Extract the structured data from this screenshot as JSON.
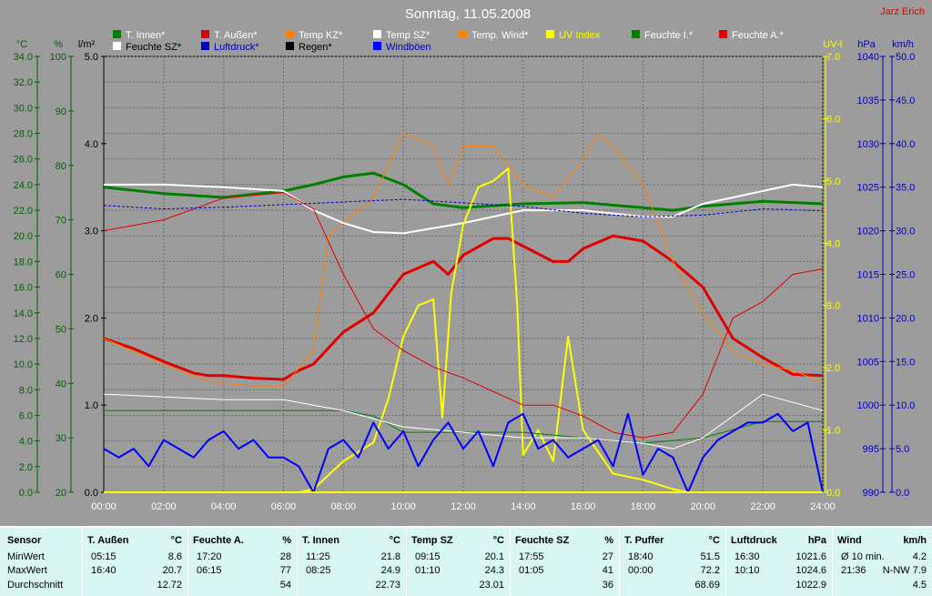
{
  "header": {
    "title": "Sonntag, 11.05.2008",
    "author": "Jarz Erich"
  },
  "legend_row1": [
    "T. Innen*",
    "T. Außen*",
    "Temp KZ*",
    "Temp SZ*",
    "Temp. Wind*",
    "UV Index",
    "Feuchte I.*",
    "Feuchte A.*"
  ],
  "legend_row2": [
    "Feuchte SZ*",
    "Luftdruck*",
    "Regen*",
    "Windböen"
  ],
  "axis_units": {
    "temp": "°C",
    "hum": "%",
    "rain": "l/m²",
    "uv": "UV-I",
    "press": "hPa",
    "wind": "km/h"
  },
  "colors": {
    "bg": "#9c9c9c",
    "t_innen": "#008000",
    "t_aussen": "#e00000",
    "temp_kz": "#ff8000",
    "temp_sz": "#ffffff",
    "uv": "#ffff00",
    "luftdruck": "#0000c0",
    "wind": "#0000ff",
    "stats_bg": "#d8f6f2"
  },
  "chart_data": {
    "type": "line",
    "x_ticks": [
      "00:00",
      "02:00",
      "04:00",
      "06:00",
      "08:00",
      "10:00",
      "12:00",
      "14:00",
      "16:00",
      "18:00",
      "20:00",
      "22:00",
      "24:00"
    ],
    "xlim": [
      0,
      24
    ],
    "axes": {
      "temp_c": {
        "min": 0,
        "max": 34,
        "ticks": [
          "0.0",
          "2.0",
          "4.0",
          "6.0",
          "8.0",
          "10.0",
          "12.0",
          "14.0",
          "16.0",
          "18.0",
          "20.0",
          "22.0",
          "24.0",
          "26.0",
          "28.0",
          "30.0",
          "32.0",
          "34.0"
        ]
      },
      "humidity_pct": {
        "min": 20,
        "max": 100,
        "ticks": [
          "20",
          "30",
          "40",
          "50",
          "60",
          "70",
          "80",
          "90",
          "100"
        ]
      },
      "rain_lm2": {
        "min": 0,
        "max": 5,
        "ticks": [
          "0.0",
          "1.0",
          "2.0",
          "3.0",
          "4.0",
          "5.0"
        ]
      },
      "uv": {
        "min": 0,
        "max": 7,
        "ticks": [
          "0.0",
          "1.0",
          "2.0",
          "3.0",
          "4.0",
          "5.0",
          "6.0",
          "7.0"
        ]
      },
      "pressure_hpa": {
        "min": 990,
        "max": 1040,
        "ticks": [
          "990",
          "995",
          "1000",
          "1005",
          "1010",
          "1015",
          "1020",
          "1025",
          "1030",
          "1035",
          "1040"
        ]
      },
      "wind_kmh": {
        "min": 0,
        "max": 50,
        "ticks": [
          "0.0",
          "5.0",
          "10.0",
          "15.0",
          "20.0",
          "25.0",
          "30.0",
          "35.0",
          "40.0",
          "45.0",
          "50.0"
        ]
      }
    },
    "series": [
      {
        "name": "T. Innen*",
        "axis": "temp_c",
        "x": [
          0,
          2,
          4,
          6,
          7,
          8,
          9,
          10,
          11,
          12,
          14,
          16,
          18,
          19,
          20,
          22,
          24
        ],
        "y": [
          23.8,
          23.3,
          23.0,
          23.5,
          24.0,
          24.6,
          24.9,
          24.0,
          22.5,
          22.2,
          22.5,
          22.6,
          22.2,
          22.0,
          22.3,
          22.7,
          22.5
        ]
      },
      {
        "name": "T. Außen*",
        "axis": "temp_c",
        "x": [
          0,
          1,
          2,
          3,
          3.5,
          4,
          5,
          6,
          6.5,
          7,
          8,
          9,
          10,
          11,
          11.5,
          12,
          13,
          13.5,
          14,
          15,
          15.5,
          16,
          17,
          18,
          19,
          20,
          21,
          22,
          23,
          24
        ],
        "y": [
          12.0,
          11.2,
          10.2,
          9.3,
          9.1,
          9.1,
          8.9,
          8.8,
          9.5,
          10.0,
          12.5,
          14.0,
          17.0,
          18.0,
          17.0,
          18.5,
          19.8,
          19.8,
          19.2,
          18.0,
          18.0,
          19.0,
          20.0,
          19.6,
          18.0,
          16.0,
          12.0,
          10.5,
          9.2,
          9.1
        ]
      },
      {
        "name": "Temp KZ*",
        "axis": "temp_c",
        "x": [
          0,
          1,
          2,
          3,
          4,
          5,
          6,
          7,
          7.5,
          8,
          9,
          10,
          11,
          11.5,
          12,
          13,
          14,
          15,
          16,
          16.5,
          17,
          18,
          19,
          20,
          21,
          22,
          23,
          24
        ],
        "y": [
          12.0,
          11.0,
          10.0,
          9.0,
          8.5,
          8.3,
          8.3,
          11.0,
          20.0,
          21.0,
          23.0,
          28.0,
          27.0,
          24.0,
          27.0,
          27.0,
          24.0,
          23.0,
          26.0,
          28.0,
          27.0,
          24.0,
          18.0,
          14.0,
          11.0,
          10.0,
          9.5,
          8.6
        ]
      },
      {
        "name": "Temp SZ*",
        "axis": "temp_c",
        "x": [
          0,
          2,
          4,
          6,
          7,
          8,
          9,
          10,
          12,
          14,
          16,
          18,
          19,
          20,
          21,
          22,
          23,
          24
        ],
        "y": [
          24.0,
          24.0,
          23.8,
          23.5,
          22.0,
          21.0,
          20.3,
          20.2,
          21.0,
          22.0,
          22.0,
          21.5,
          21.5,
          22.5,
          23.0,
          23.5,
          24.0,
          23.8
        ]
      },
      {
        "name": "UV Index",
        "axis": "uv",
        "x": [
          0,
          6.5,
          7,
          8,
          9,
          9.5,
          10,
          10.5,
          11,
          11.3,
          11.6,
          12,
          12.5,
          13,
          13.5,
          13.8,
          14,
          14.5,
          15,
          15.5,
          16,
          17,
          18,
          19,
          19.5,
          20,
          24
        ],
        "y": [
          0,
          0,
          0.05,
          0.5,
          0.8,
          1.5,
          2.5,
          3.0,
          3.1,
          1.2,
          3.2,
          4.3,
          4.9,
          5.0,
          5.2,
          3.0,
          0.6,
          1.0,
          0.5,
          2.5,
          1.0,
          0.3,
          0.2,
          0.05,
          0,
          0,
          0
        ]
      },
      {
        "name": "Feuchte I.*",
        "axis": "humidity_pct",
        "x": [
          0,
          4,
          6,
          8,
          9,
          10,
          12,
          14,
          16,
          18,
          20,
          22,
          24
        ],
        "y": [
          35,
          35,
          35,
          35,
          34,
          31,
          31,
          31,
          30,
          29,
          30,
          33,
          33
        ]
      },
      {
        "name": "Feuchte A.*",
        "axis": "humidity_pct",
        "x": [
          0,
          2,
          4,
          6,
          7,
          8,
          9,
          10,
          11,
          12,
          14,
          15,
          16,
          17,
          18,
          19,
          20,
          21,
          22,
          23,
          24
        ],
        "y": [
          68,
          70,
          74,
          75,
          72,
          60,
          50,
          46,
          43,
          41,
          36,
          36,
          34,
          31,
          30,
          31,
          38,
          52,
          55,
          60,
          61
        ]
      },
      {
        "name": "Feuchte SZ*",
        "axis": "humidity_pct",
        "x": [
          0,
          4,
          6,
          8,
          10,
          12,
          14,
          16,
          18,
          19,
          20,
          22,
          24
        ],
        "y": [
          38,
          37,
          37,
          35,
          32,
          31,
          30,
          30,
          29,
          28,
          30,
          38,
          35
        ]
      },
      {
        "name": "Luftdruck*",
        "axis": "pressure_hpa",
        "x": [
          0,
          2,
          4,
          6,
          8,
          10,
          12,
          14,
          16,
          18,
          20,
          22,
          24
        ],
        "y": [
          1022.9,
          1022.5,
          1022.7,
          1023.0,
          1023.3,
          1023.6,
          1023.2,
          1022.8,
          1022.0,
          1021.6,
          1021.8,
          1022.5,
          1022.3
        ]
      },
      {
        "name": "Windböen",
        "axis": "wind_kmh",
        "x": [
          0,
          0.5,
          1,
          1.5,
          2,
          2.5,
          3,
          3.5,
          4,
          4.5,
          5,
          5.5,
          6,
          6.5,
          7,
          7.5,
          8,
          8.5,
          9,
          9.5,
          10,
          10.5,
          11,
          11.5,
          12,
          12.5,
          13,
          13.5,
          14,
          14.5,
          15,
          15.5,
          16,
          16.5,
          17,
          17.5,
          18,
          18.5,
          19,
          19.5,
          20,
          20.5,
          21,
          21.5,
          22,
          22.5,
          23,
          23.5,
          24
        ],
        "y": [
          5,
          4,
          5,
          3,
          6,
          5,
          4,
          6,
          7,
          5,
          6,
          4,
          4,
          3,
          0,
          5,
          6,
          4,
          8,
          5,
          7,
          3,
          6,
          8,
          5,
          7,
          3,
          8,
          9,
          5,
          6,
          4,
          5,
          6,
          3,
          9,
          2,
          5,
          4,
          0,
          4,
          6,
          7,
          8,
          8,
          9,
          7,
          8,
          0
        ]
      }
    ]
  },
  "stats": {
    "labels": {
      "sensor": "Sensor",
      "min": "MinWert",
      "max": "MaxWert",
      "avg": "Durchschnitt"
    },
    "columns": [
      {
        "title": "T. Außen",
        "unit": "°C",
        "min_time": "05:15",
        "min_val": "8.6",
        "max_time": "16:40",
        "max_val": "20.7",
        "avg": "12.72"
      },
      {
        "title": "Feuchte A.",
        "unit": "%",
        "min_time": "17:20",
        "min_val": "28",
        "max_time": "06:15",
        "max_val": "77",
        "avg": "54"
      },
      {
        "title": "T. Innen",
        "unit": "°C",
        "min_time": "11:25",
        "min_val": "21.8",
        "max_time": "08:25",
        "max_val": "24.9",
        "avg": "22.73"
      },
      {
        "title": "Temp SZ",
        "unit": "°C",
        "min_time": "09:15",
        "min_val": "20.1",
        "max_time": "01:10",
        "max_val": "24.3",
        "avg": "23.01"
      },
      {
        "title": "Feuchte SZ",
        "unit": "%",
        "min_time": "17:55",
        "min_val": "27",
        "max_time": "01:05",
        "max_val": "41",
        "avg": "36"
      },
      {
        "title": "T. Puffer",
        "unit": "°C",
        "min_time": "18:40",
        "min_val": "51.5",
        "max_time": "00:00",
        "max_val": "72.2",
        "avg": "68.69"
      },
      {
        "title": "Luftdruck",
        "unit": "hPa",
        "min_time": "16:30",
        "min_val": "1021.6",
        "max_time": "10:10",
        "max_val": "1024.6",
        "avg": "1022.9"
      },
      {
        "title": "Wind",
        "unit": "km/h",
        "min_time": "Ø 10 min.",
        "min_val": "4.2",
        "max_time": "21:36",
        "max_val": "N-NW 7.9",
        "avg": "4.5"
      }
    ]
  }
}
